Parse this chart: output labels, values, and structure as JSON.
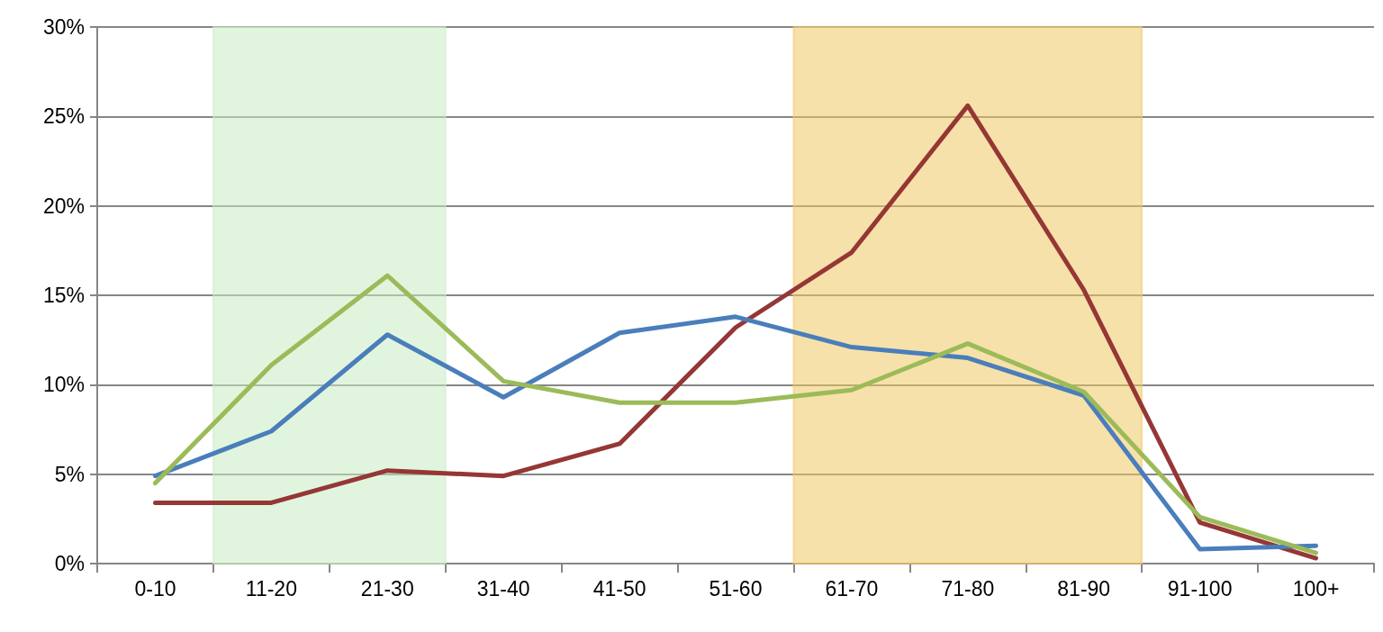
{
  "chart_data": {
    "type": "line",
    "categories": [
      "0-10",
      "11-20",
      "21-30",
      "31-40",
      "41-50",
      "51-60",
      "61-70",
      "71-80",
      "81-90",
      "91-100",
      "100+"
    ],
    "series": [
      {
        "color": "#953735",
        "values": [
          3.4,
          3.4,
          5.2,
          4.9,
          6.7,
          13.2,
          17.4,
          25.6,
          15.3,
          2.3,
          0.3
        ]
      },
      {
        "color": "#4a7ebb",
        "values": [
          4.9,
          7.4,
          12.8,
          9.3,
          12.9,
          13.8,
          12.1,
          11.5,
          9.4,
          0.8,
          1.0
        ]
      },
      {
        "color": "#9bbb59",
        "values": [
          4.5,
          11.1,
          16.1,
          10.2,
          9.0,
          9.0,
          9.7,
          12.3,
          9.6,
          2.6,
          0.6
        ]
      }
    ],
    "ylim": [
      0,
      30
    ],
    "yticks": [
      {
        "value": 0,
        "label": "0%"
      },
      {
        "value": 5,
        "label": "5%"
      },
      {
        "value": 10,
        "label": "10%"
      },
      {
        "value": 15,
        "label": "15%"
      },
      {
        "value": 20,
        "label": "20%"
      },
      {
        "value": 25,
        "label": "25%"
      },
      {
        "value": 30,
        "label": "30%"
      }
    ],
    "bands": [
      {
        "axis": "x",
        "from": "11-20",
        "to": "21-30",
        "color": "#c9ecc3"
      },
      {
        "axis": "x",
        "from": "61-70",
        "to": "81-90",
        "color": "#f0c964"
      }
    ],
    "grid": "y",
    "marker": "none",
    "line_style": "solid"
  }
}
